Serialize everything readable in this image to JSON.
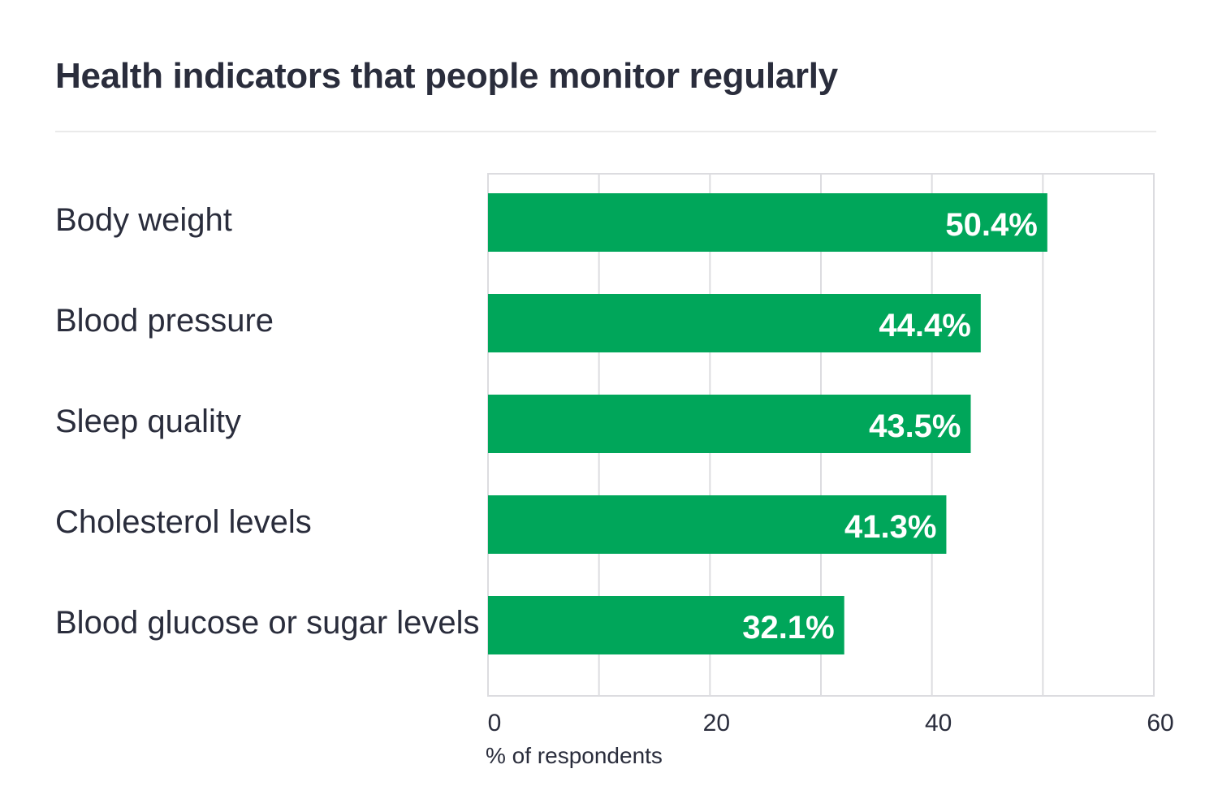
{
  "chart_data": {
    "type": "bar",
    "orientation": "horizontal",
    "title": "Health indicators that people monitor regularly",
    "categories": [
      "Body weight",
      "Blood pressure",
      "Sleep quality",
      "Cholesterol levels",
      "Blood glucose or sugar levels"
    ],
    "values": [
      50.4,
      44.4,
      43.5,
      41.3,
      32.1
    ],
    "value_labels": [
      "50.4%",
      "44.4%",
      "43.5%",
      "41.3%",
      "32.1%"
    ],
    "xlabel": "% of respondents",
    "ylabel": "",
    "xlim": [
      0,
      60
    ],
    "ticks": [
      0,
      20,
      40,
      60
    ],
    "tick_labels": [
      "0",
      "20",
      "40",
      "60"
    ],
    "minor_gridlines": [
      10,
      30,
      50
    ],
    "grid": true,
    "legend": "none",
    "bar_color": "#00a65a",
    "grid_color": "#dcdce0",
    "text_color": "#2a2d3c",
    "value_label_color": "#ffffff"
  }
}
